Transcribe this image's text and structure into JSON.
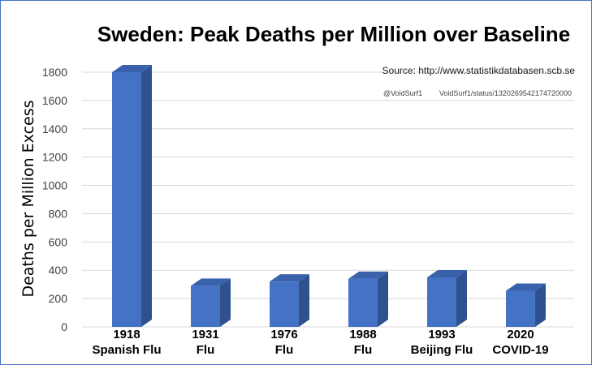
{
  "chart_data": {
    "type": "bar",
    "title": "Sweden: Peak Deaths per Million over Baseline",
    "ylabel": "Deaths per Million Excess",
    "xlabel": "",
    "ylim": [
      0,
      1800
    ],
    "yticks": [
      0,
      200,
      400,
      600,
      800,
      1000,
      1200,
      1400,
      1600,
      1800
    ],
    "grid": true,
    "style": "3d-column",
    "categories": [
      [
        "1918",
        "Spanish Flu"
      ],
      [
        "1931",
        "Flu"
      ],
      [
        "1976",
        "Flu"
      ],
      [
        "1988",
        "Flu"
      ],
      [
        "1993",
        "Beijing Flu"
      ],
      [
        "2020",
        "COVID-19"
      ]
    ],
    "values": [
      1800,
      290,
      320,
      340,
      350,
      255
    ],
    "bar_color": "#4472c4",
    "source": "Source: http://www.statistikdatabasen.scb.se",
    "credit_handle": "@VoidSurf1",
    "credit_status": "VoidSurf1/status/1320269542174720000"
  }
}
